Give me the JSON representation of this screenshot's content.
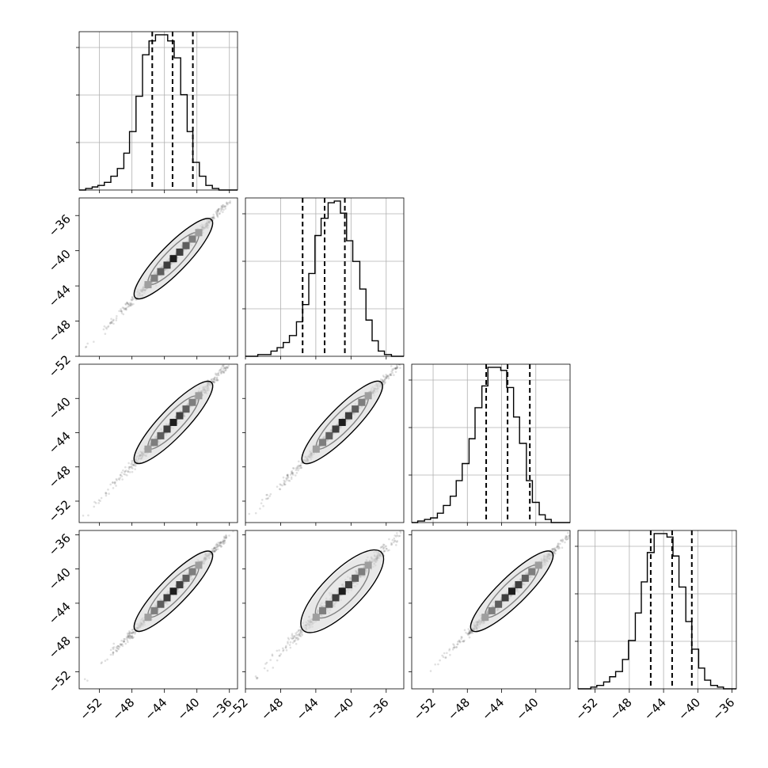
{
  "chart_data": {
    "type": "corner",
    "title": "",
    "parameters": [
      {
        "name": "",
        "range": [
          -54.5,
          -35
        ],
        "quantiles": [
          -45.5,
          -43.0,
          -40.5
        ]
      },
      {
        "name": "",
        "range": [
          -52,
          -34
        ],
        "quantiles": [
          -45.5,
          -43.0,
          -40.7
        ]
      },
      {
        "name": "",
        "range": [
          -54.5,
          -36
        ],
        "quantiles": [
          -45.8,
          -43.3,
          -40.7
        ]
      },
      {
        "name": "",
        "range": [
          -54,
          -35.5
        ],
        "quantiles": [
          -45.5,
          -43.0,
          -40.7
        ]
      }
    ],
    "grid": true,
    "histograms": [
      {
        "param": 0,
        "edges": [
          -54.5,
          -53.7,
          -52.9,
          -52.2,
          -51.4,
          -50.6,
          -49.8,
          -49.0,
          -48.3,
          -47.5,
          -46.7,
          -45.9,
          -45.1,
          -44.4,
          -43.6,
          -42.8,
          -42.0,
          -41.2,
          -40.5,
          -39.7,
          -38.9,
          -38.1,
          -37.3,
          -36.6,
          -35.8,
          -35.0
        ],
        "counts": [
          0,
          1,
          2,
          3,
          5,
          9,
          14,
          24,
          38,
          61,
          88,
          97,
          101,
          101,
          97,
          86,
          62,
          38,
          18,
          9,
          3,
          1,
          0,
          0,
          0
        ]
      },
      {
        "param": 1,
        "edges": [
          -52.0,
          -51.3,
          -50.6,
          -49.8,
          -49.1,
          -48.4,
          -47.7,
          -47.0,
          -46.2,
          -45.5,
          -44.8,
          -44.1,
          -43.4,
          -42.6,
          -41.9,
          -41.2,
          -40.5,
          -39.8,
          -39.0,
          -38.3,
          -37.6,
          -36.9,
          -36.2,
          -35.4,
          -34.7,
          -34.0
        ],
        "counts": [
          0,
          0,
          1,
          1,
          3,
          5,
          8,
          12,
          20,
          30,
          48,
          70,
          80,
          89,
          90,
          83,
          67,
          55,
          39,
          21,
          9,
          3,
          1,
          0,
          0
        ]
      },
      {
        "param": 2,
        "edges": [
          -54.5,
          -53.8,
          -53.0,
          -52.3,
          -51.5,
          -50.8,
          -50.0,
          -49.3,
          -48.6,
          -47.8,
          -47.1,
          -46.3,
          -45.6,
          -44.8,
          -44.1,
          -43.4,
          -42.6,
          -41.9,
          -41.1,
          -40.4,
          -39.6,
          -38.9,
          -38.2,
          -37.4,
          -36.7,
          -36.0
        ],
        "counts": [
          0,
          1,
          2,
          3,
          6,
          11,
          17,
          27,
          38,
          54,
          74,
          88,
          100,
          100,
          98,
          87,
          68,
          51,
          27,
          13,
          5,
          2,
          0,
          0,
          0
        ]
      },
      {
        "param": 3,
        "edges": [
          -54.0,
          -53.3,
          -52.5,
          -51.8,
          -51.0,
          -50.3,
          -49.6,
          -48.8,
          -48.1,
          -47.3,
          -46.6,
          -45.9,
          -45.1,
          -44.4,
          -43.6,
          -42.9,
          -42.2,
          -41.4,
          -40.7,
          -39.9,
          -39.2,
          -38.5,
          -37.7,
          -37.0,
          -36.2,
          -35.5
        ],
        "counts": [
          0,
          0,
          1,
          2,
          4,
          7,
          10,
          17,
          28,
          44,
          62,
          79,
          90,
          90,
          88,
          77,
          59,
          39,
          23,
          12,
          5,
          2,
          1,
          0,
          0
        ]
      }
    ],
    "pairs": [
      {
        "x_param": 0,
        "y_param": 1,
        "correlation": 0.99,
        "center": [
          -42.9,
          -40.9
        ],
        "sigma": [
          1.95,
          1.85
        ]
      },
      {
        "x_param": 0,
        "y_param": 2,
        "correlation": 0.99,
        "center": [
          -42.9,
          -42.8
        ],
        "sigma": [
          1.95,
          1.95
        ]
      },
      {
        "x_param": 1,
        "y_param": 2,
        "correlation": 0.99,
        "center": [
          -41.0,
          -42.8
        ],
        "sigma": [
          1.85,
          1.95
        ]
      },
      {
        "x_param": 0,
        "y_param": 3,
        "correlation": 0.99,
        "center": [
          -42.9,
          -42.6
        ],
        "sigma": [
          1.95,
          1.9
        ]
      },
      {
        "x_param": 1,
        "y_param": 3,
        "correlation": 0.98,
        "center": [
          -41.0,
          -42.6
        ],
        "sigma": [
          1.85,
          1.9
        ]
      },
      {
        "x_param": 2,
        "y_param": 3,
        "correlation": 0.99,
        "center": [
          -42.8,
          -42.6
        ],
        "sigma": [
          1.95,
          1.9
        ]
      }
    ],
    "ticks": {
      "row_y_ticks": [
        [],
        [
          -36,
          -40,
          -44,
          -48,
          -52
        ],
        [
          -40,
          -44,
          -48,
          -52
        ],
        [
          -36,
          -40,
          -44,
          -48,
          -52
        ]
      ],
      "col_x_ticks": [
        [
          -52,
          -48,
          -44,
          -40,
          -36
        ],
        [
          -52,
          -48,
          -44,
          -40,
          -36
        ],
        [
          -52,
          -48,
          -44,
          -40
        ],
        [
          -52,
          -48,
          -44,
          -40,
          -36
        ]
      ],
      "label_prefix": "−"
    }
  }
}
